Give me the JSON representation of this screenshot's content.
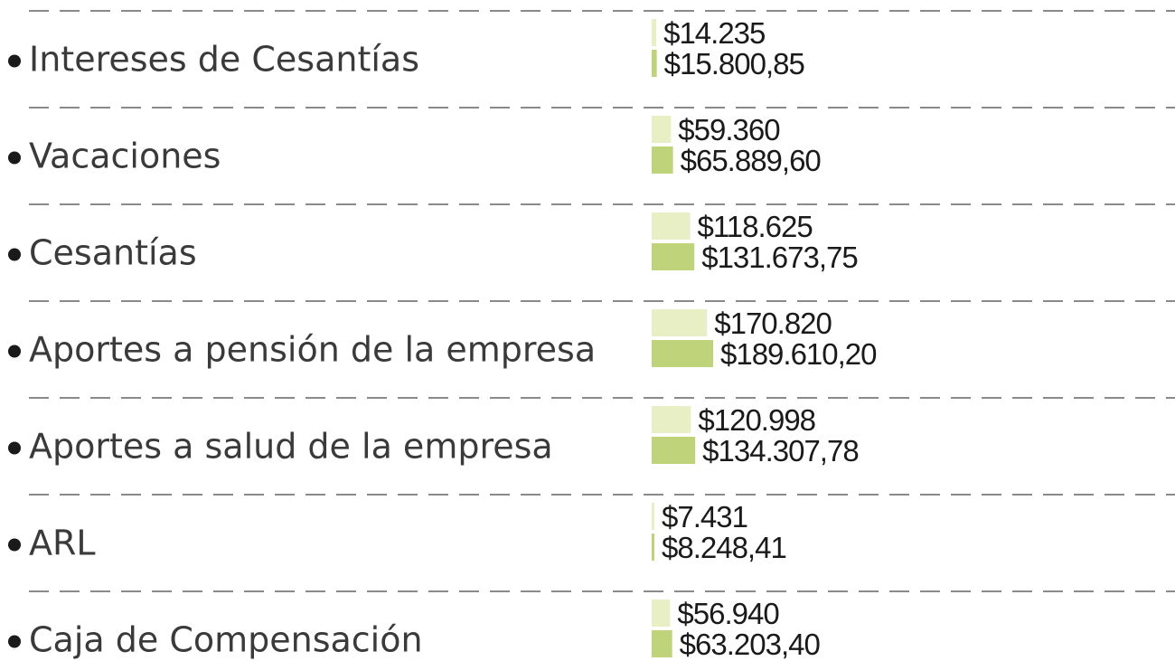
{
  "chart_data": {
    "type": "bar",
    "orientation": "horizontal",
    "grid": false,
    "colors": {
      "series_1": "#e9efc4",
      "series_2": "#bfd47a",
      "bullet": "#1a1a1a",
      "divider": "#8a8a8a"
    },
    "categories": [
      "Intereses de Cesantías",
      "Vacaciones",
      "Cesantías",
      "Aportes a pensión de la empresa",
      "Aportes a salud de la empresa",
      "ARL",
      "Caja de Compensación"
    ],
    "series": [
      {
        "values": [
          14235,
          59360,
          118625,
          170820,
          120998,
          7431,
          56940
        ],
        "labels": [
          "$14.235",
          "$59.360",
          "$118.625",
          "$170.820",
          "$120.998",
          "$7.431",
          "$56.940"
        ]
      },
      {
        "values": [
          15800.85,
          65889.6,
          131673.75,
          189610.2,
          134307.78,
          8248.41,
          63203.4
        ],
        "labels": [
          "$15.800,85",
          "$65.889,60",
          "$131.673,75",
          "$189.610,20",
          "$134.307,78",
          "$8.248,41",
          "$63.203,40"
        ]
      }
    ]
  }
}
